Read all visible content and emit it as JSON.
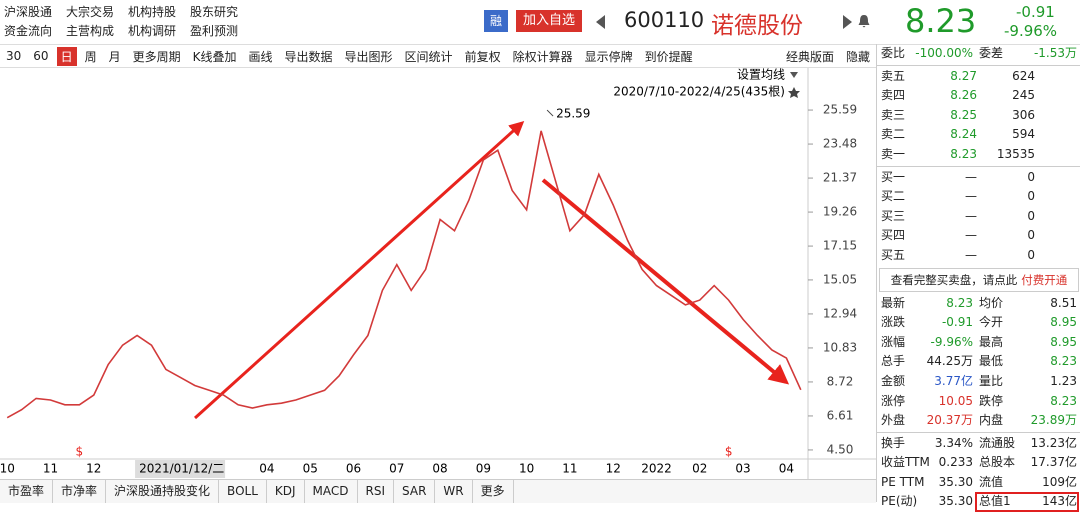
{
  "header": {
    "nav_links": [
      [
        "沪深股通",
        "大宗交易",
        "机构持股",
        "股东研究"
      ],
      [
        "资金流向",
        "主营构成",
        "机构调研",
        "盈利预测"
      ]
    ],
    "badge": "融",
    "add_button": "加入自选",
    "code": "600110",
    "name": "诺德股份",
    "price": "8.23",
    "change": "-0.91",
    "change_pct": "-9.96%"
  },
  "toolbar": [
    "30",
    "60",
    "日",
    "周",
    "月",
    "更多周期",
    "K线叠加",
    "画线",
    "导出数据",
    "导出图形",
    "区间统计",
    "前复权",
    "除权计算器",
    "显示停牌",
    "到价提醒"
  ],
  "toolbar_right": [
    "经典版面",
    "隐藏"
  ],
  "chart_data": {
    "type": "line",
    "settings_label": "设置均线",
    "range_label": "2020/7/10-2022/4/25(435根)",
    "peak": 25.59,
    "event_marks": [
      "$",
      "$"
    ],
    "color": "#d23a3a",
    "categories": [
      "10",
      null,
      null,
      "11",
      null,
      null,
      "12",
      null,
      null,
      "2021/01/12/二",
      null,
      null,
      null,
      null,
      null,
      null,
      null,
      null,
      "04",
      null,
      null,
      "05",
      null,
      null,
      "06",
      null,
      null,
      "07",
      null,
      null,
      "08",
      null,
      null,
      "09",
      null,
      null,
      "10",
      null,
      null,
      "11",
      null,
      null,
      "12",
      null,
      null,
      "2022",
      null,
      null,
      "02",
      null,
      null,
      "03",
      null,
      null,
      "04",
      null
    ],
    "values": [
      6.5,
      7.0,
      7.7,
      7.6,
      7.3,
      7.3,
      7.9,
      9.8,
      11.0,
      11.6,
      11.0,
      9.5,
      9.0,
      8.5,
      8.2,
      7.9,
      7.3,
      7.1,
      7.3,
      7.4,
      7.6,
      7.9,
      8.2,
      9.1,
      10.4,
      11.6,
      14.4,
      16.0,
      14.4,
      15.7,
      18.8,
      18.1,
      20.0,
      22.5,
      23.1,
      20.6,
      19.4,
      24.3,
      21.2,
      18.1,
      19.1,
      21.6,
      19.7,
      17.5,
      15.7,
      14.7,
      14.1,
      13.5,
      13.8,
      14.7,
      13.8,
      12.6,
      11.6,
      10.7,
      10.2,
      8.23
    ],
    "ylim": [
      4.0,
      28.2
    ],
    "yticks": [
      {
        "value": 4.5,
        "label": "4.50"
      },
      6.61,
      8.72,
      10.83,
      12.94,
      15.05,
      17.15,
      19.26,
      21.37,
      23.48,
      25.59
    ]
  },
  "quote_panel": {
    "ratio": [
      "委比",
      "-100.00%",
      "委差",
      "-1.53万"
    ],
    "sell": [
      [
        "卖五",
        "8.27",
        "624"
      ],
      [
        "卖四",
        "8.26",
        "245"
      ],
      [
        "卖三",
        "8.25",
        "306"
      ],
      [
        "卖二",
        "8.24",
        "594"
      ],
      [
        "卖一",
        "8.23",
        "13535"
      ]
    ],
    "buy": [
      [
        "买一",
        "—",
        "0"
      ],
      [
        "买二",
        "—",
        "0"
      ],
      [
        "买三",
        "—",
        "0"
      ],
      [
        "买四",
        "—",
        "0"
      ],
      [
        "买五",
        "—",
        "0"
      ]
    ],
    "notice": "查看完整买卖盘，请点此",
    "notice_link": "付费开通",
    "stats": [
      [
        "最新",
        "8.23",
        "均价",
        "8.51"
      ],
      [
        "涨跌",
        "-0.91",
        "今开",
        "8.95"
      ],
      [
        "涨幅",
        "-9.96%",
        "最高",
        "8.95"
      ],
      [
        "总手",
        "44.25万",
        "最低",
        "8.23"
      ],
      [
        "金额",
        "3.77亿",
        "量比",
        "1.23"
      ],
      [
        "涨停",
        "10.05",
        "跌停",
        "8.23"
      ],
      [
        "外盘",
        "20.37万",
        "内盘",
        "23.89万"
      ]
    ],
    "fundamentals": [
      [
        "换手",
        "3.34%",
        "流通股",
        "13.23亿"
      ],
      [
        "收益TTM",
        "0.233",
        "总股本",
        "17.37亿"
      ],
      [
        "PE TTM",
        "35.30",
        "流值",
        "109亿"
      ],
      [
        "PE(动)",
        "35.30",
        "总值1",
        "143亿"
      ]
    ]
  },
  "bottom_tabs": [
    "市盈率",
    "市净率",
    "沪深股通持股变化",
    "BOLL",
    "KDJ",
    "MACD",
    "RSI",
    "SAR",
    "WR",
    "更多"
  ]
}
